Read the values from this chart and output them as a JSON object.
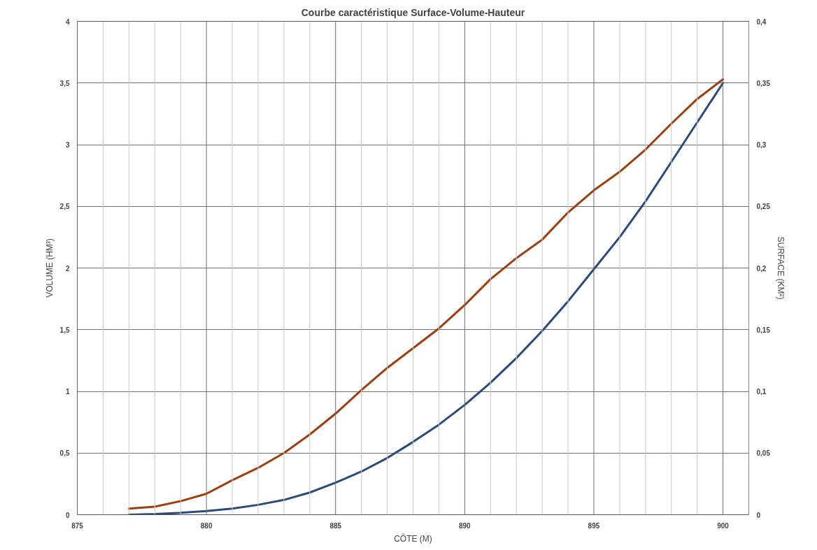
{
  "chart_data": {
    "type": "line",
    "title": "Courbe caractéristique Surface-Volume-Hauteur",
    "xlabel": "CÔTE (M)",
    "ylabel": "VOLUME (HM³)",
    "y2label": "SURFACE (KM²)",
    "x": [
      877,
      878,
      879,
      880,
      881,
      882,
      883,
      884,
      885,
      886,
      887,
      888,
      889,
      890,
      891,
      892,
      893,
      894,
      895,
      896,
      897,
      898,
      899,
      900
    ],
    "series": [
      {
        "color": "#2b4a7c",
        "values": [
          0.0,
          0.005,
          0.015,
          0.03,
          0.05,
          0.08,
          0.12,
          0.18,
          0.26,
          0.35,
          0.46,
          0.59,
          0.73,
          0.89,
          1.07,
          1.27,
          1.49,
          1.73,
          1.99,
          2.25,
          2.54,
          2.86,
          3.18,
          3.5
        ]
      },
      {
        "color": "#9c3f10",
        "axis": "y2",
        "values": [
          0.005,
          0.0065,
          0.011,
          0.017,
          0.028,
          0.038,
          0.05,
          0.065,
          0.082,
          0.101,
          0.119,
          0.135,
          0.151,
          0.17,
          0.191,
          0.208,
          0.223,
          0.245,
          0.263,
          0.278,
          0.296,
          0.317,
          0.337,
          0.353
        ]
      }
    ],
    "xlim": [
      875,
      901
    ],
    "xticks": [
      875,
      {
        "value": 876,
        "label": null
      },
      {
        "value": 877,
        "label": null
      },
      {
        "value": 878,
        "label": null
      },
      {
        "value": 879,
        "label": null
      },
      880,
      {
        "value": 881,
        "label": null
      },
      {
        "value": 882,
        "label": null
      },
      {
        "value": 883,
        "label": null
      },
      {
        "value": 884,
        "label": null
      },
      885,
      {
        "value": 886,
        "label": null
      },
      {
        "value": 887,
        "label": null
      },
      {
        "value": 888,
        "label": null
      },
      {
        "value": 889,
        "label": null
      },
      890,
      {
        "value": 891,
        "label": null
      },
      {
        "value": 892,
        "label": null
      },
      {
        "value": 893,
        "label": null
      },
      {
        "value": 894,
        "label": null
      },
      895,
      {
        "value": 896,
        "label": null
      },
      {
        "value": 897,
        "label": null
      },
      {
        "value": 898,
        "label": null
      },
      {
        "value": 899,
        "label": null
      },
      900,
      {
        "value": 901,
        "label": null
      }
    ],
    "ylim": [
      0,
      4
    ],
    "yticks": [
      0,
      {
        "value": 0.5,
        "label": "0,5"
      },
      1,
      {
        "value": 1.5,
        "label": "1,5"
      },
      2,
      {
        "value": 2.5,
        "label": "2,5"
      },
      3,
      {
        "value": 3.5,
        "label": "3,5"
      },
      4
    ],
    "y2lim": [
      0,
      0.4
    ],
    "y2ticks": [
      0,
      {
        "value": 0.05,
        "label": "0,05"
      },
      {
        "value": 0.1,
        "label": "0,1"
      },
      {
        "value": 0.15,
        "label": "0,15"
      },
      {
        "value": 0.2,
        "label": "0,2"
      },
      {
        "value": 0.25,
        "label": "0,25"
      },
      {
        "value": 0.3,
        "label": "0,3"
      },
      {
        "value": 0.35,
        "label": "0,35"
      },
      {
        "value": 0.4,
        "label": "0,4"
      }
    ],
    "grid": true,
    "line_style": "solid"
  }
}
